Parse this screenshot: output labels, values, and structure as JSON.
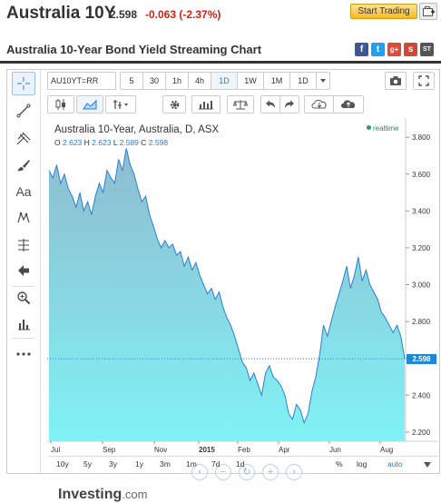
{
  "header": {
    "instrument": "Australia 10Y",
    "last": "2.598",
    "change": "-0.063 (-2.37%)",
    "start_trading": "Start Trading"
  },
  "section": {
    "title": "Australia 10-Year Bond Yield Streaming Chart",
    "share": [
      "f",
      "t",
      "g+",
      "s",
      "ST"
    ]
  },
  "top_toolbar": {
    "symbol": "AU10YT=RR",
    "intervals": [
      "5",
      "30",
      "1h",
      "4h",
      "1D",
      "1W",
      "1M",
      "1D"
    ],
    "active_interval": "1D"
  },
  "left_tools": {
    "text_tool": "Aa"
  },
  "chart": {
    "title": "Australia 10-Year, Australia, D, ASX",
    "realtime": "realtime",
    "ohlc": {
      "o_label": "O",
      "o": "2.623",
      "h_label": "H",
      "h": "2.623",
      "l_label": "L",
      "l": "2.589",
      "c_label": "C",
      "c": "2.598"
    },
    "last_price_tag": "2.598",
    "watermark_main": "Investing",
    "watermark_sub": ".com"
  },
  "ranges": [
    "10y",
    "5y",
    "3y",
    "1y",
    "3m",
    "1m",
    "7d",
    "1d",
    "%",
    "log",
    "auto"
  ],
  "active_range": "auto",
  "chart_data": {
    "type": "area",
    "x_ticks": [
      "Jul",
      "Sep",
      "Nov",
      "2015",
      "Feb",
      "Apr",
      "Jun",
      "Aug"
    ],
    "y_ticks": [
      "3.800",
      "3.600",
      "3.400",
      "3.200",
      "3.000",
      "2.800",
      "2.600",
      "2.400",
      "2.200"
    ],
    "ylim": [
      2.15,
      3.86
    ],
    "series": [
      {
        "values": [
          3.62,
          3.58,
          3.65,
          3.55,
          3.6,
          3.52,
          3.48,
          3.42,
          3.5,
          3.4,
          3.45,
          3.38,
          3.48,
          3.55,
          3.5,
          3.62,
          3.58,
          3.55,
          3.68,
          3.62,
          3.74,
          3.65,
          3.6,
          3.52,
          3.45,
          3.48,
          3.38,
          3.32,
          3.25,
          3.2,
          3.24,
          3.2,
          3.22,
          3.16,
          3.18,
          3.1,
          3.15,
          3.08,
          3.12,
          3.05,
          3.0,
          2.95,
          2.98,
          2.92,
          2.96,
          2.88,
          2.82,
          2.78,
          2.72,
          2.65,
          2.58,
          2.55,
          2.48,
          2.52,
          2.46,
          2.4,
          2.52,
          2.56,
          2.5,
          2.48,
          2.45,
          2.4,
          2.3,
          2.27,
          2.35,
          2.32,
          2.25,
          2.3,
          2.42,
          2.5,
          2.62,
          2.78,
          2.72,
          2.8,
          2.88,
          2.95,
          3.02,
          3.1,
          2.98,
          3.05,
          3.15,
          3.02,
          3.08,
          3.0,
          2.96,
          2.92,
          2.85,
          2.82,
          2.78,
          2.74,
          2.78,
          2.72,
          2.598
        ]
      }
    ],
    "last": 2.598,
    "grid": false,
    "legend": "none"
  }
}
